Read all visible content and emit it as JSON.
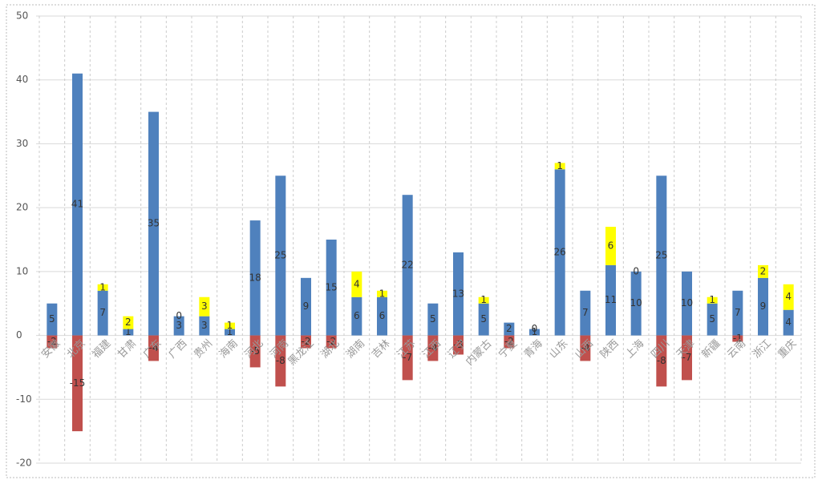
{
  "chart_data": {
    "type": "bar",
    "stacked": true,
    "categories": [
      "安徽",
      "北京",
      "福建",
      "甘肃",
      "广东",
      "广西",
      "贵州",
      "海南",
      "河北",
      "河南",
      "黑龙江",
      "湖北",
      "湖南",
      "吉林",
      "江苏",
      "江西",
      "辽宁",
      "内蒙古",
      "宁夏",
      "青海",
      "山东",
      "山西",
      "陕西",
      "上海",
      "四川",
      "天津",
      "新疆",
      "云南",
      "浙江",
      "重庆"
    ],
    "series": [
      {
        "color": "#4f81bd",
        "values": [
          5,
          41,
          7,
          1,
          35,
          3,
          3,
          1,
          18,
          25,
          9,
          15,
          6,
          6,
          22,
          5,
          13,
          5,
          2,
          1,
          26,
          7,
          11,
          10,
          25,
          10,
          5,
          7,
          9,
          4
        ]
      },
      {
        "color": "#c0504d",
        "values": [
          -2,
          -15,
          null,
          null,
          -4,
          null,
          null,
          null,
          -5,
          -8,
          -2,
          -2,
          null,
          null,
          -7,
          -4,
          -3,
          null,
          -2,
          null,
          null,
          -4,
          null,
          null,
          -8,
          -7,
          null,
          -1,
          null,
          null
        ]
      },
      {
        "color": "#ffff00",
        "values": [
          null,
          null,
          1,
          2,
          null,
          0,
          3,
          1,
          null,
          null,
          null,
          null,
          4,
          1,
          null,
          null,
          null,
          1,
          null,
          0,
          1,
          null,
          6,
          0,
          null,
          null,
          1,
          null,
          2,
          4
        ]
      }
    ],
    "ylim": [
      -20,
      50
    ],
    "yticks": [
      -20,
      -10,
      0,
      10,
      20,
      30,
      40,
      50
    ],
    "grid": true
  }
}
